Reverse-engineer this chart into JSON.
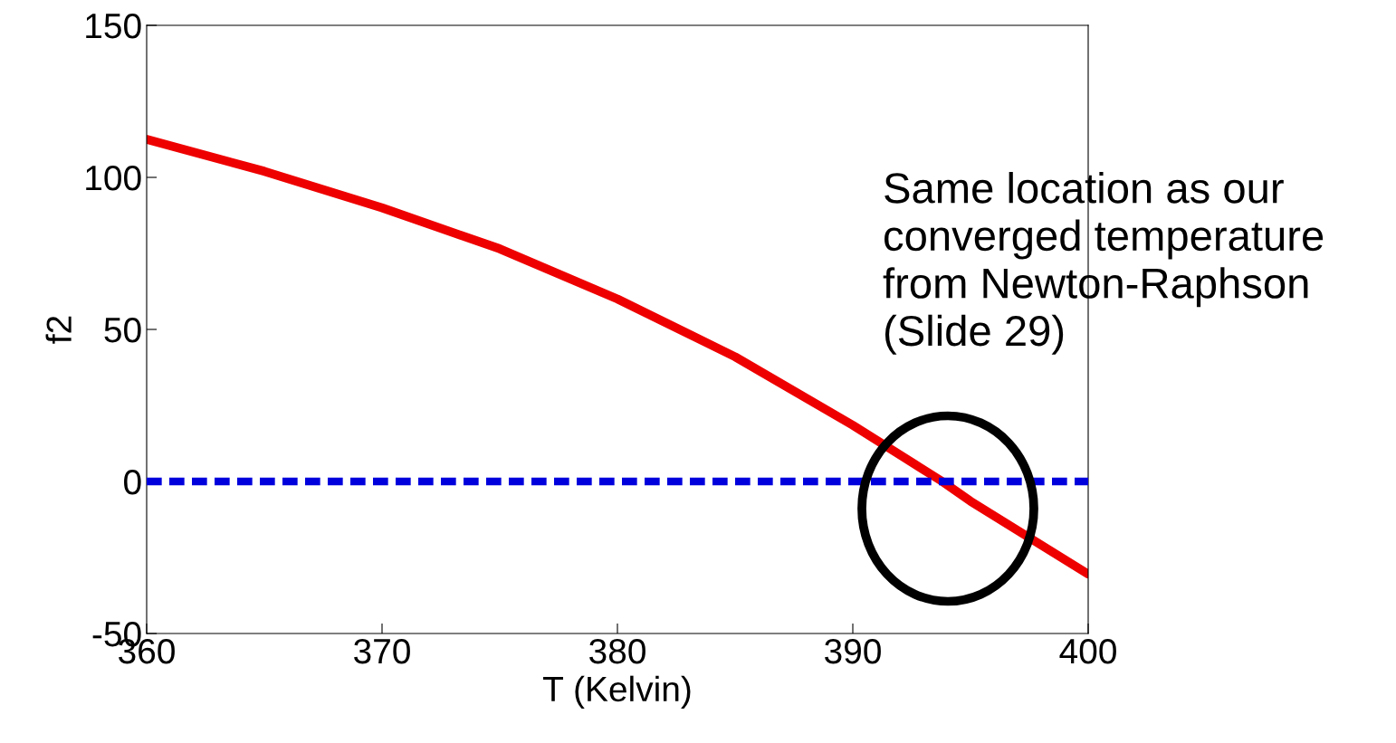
{
  "chart_data": {
    "type": "line",
    "xlabel": "T (Kelvin)",
    "ylabel": "f2",
    "x": [
      360,
      365,
      370,
      375,
      380,
      385,
      390,
      393.8,
      395,
      400
    ],
    "series": [
      {
        "color": "#ee0000",
        "values": [
          112.5,
          102,
          90,
          76.5,
          60,
          41,
          18.5,
          0,
          -6.5,
          -30.5
        ]
      }
    ],
    "ref_lines": [
      {
        "axis": "y",
        "value": 0,
        "color": "#0000dd",
        "line_style": "dashed"
      }
    ],
    "annotations": [
      "Same location as our converged temperature from Newton-Raphson (Slide 29)"
    ],
    "xlim": [
      360,
      400
    ],
    "xticks": [
      360,
      370,
      380,
      390,
      400
    ],
    "ylim": [
      -50,
      150
    ],
    "yticks": [
      -50,
      0,
      50,
      100,
      150
    ],
    "grid": false,
    "legend": false
  }
}
